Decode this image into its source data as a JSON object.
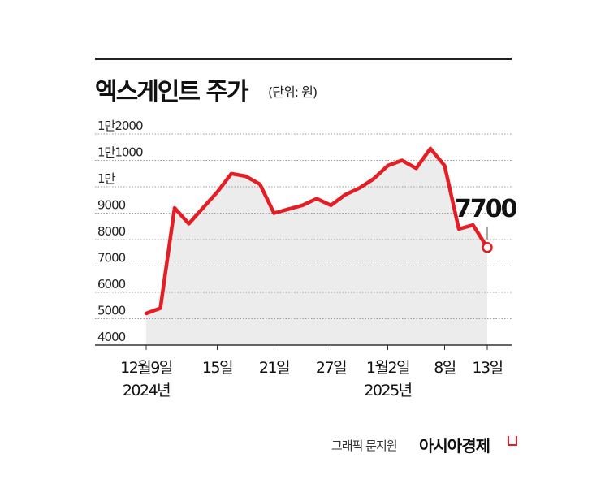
{
  "title": "엑스게인트 주가",
  "unit": "(단위: 원)",
  "credit": "그래픽 문지원",
  "brand": "아시아경제",
  "colors": {
    "line": "#e41e25",
    "fill": "#ececec",
    "grid": "#9a9a9a"
  },
  "chart_data": {
    "type": "line",
    "title": "엑스게인트 주가",
    "ylabel": "(단위: 원)",
    "ylim": [
      4000,
      12000
    ],
    "yticks": [
      4000,
      5000,
      6000,
      7000,
      8000,
      9000,
      10000,
      11000,
      12000
    ],
    "ytick_labels": [
      "4000",
      "5000",
      "6000",
      "7000",
      "8000",
      "9000",
      "1만",
      "1만1000",
      "1만2000"
    ],
    "xticks": [
      {
        "label": "12월9일",
        "sub": "2024년",
        "index": 0
      },
      {
        "label": "15일",
        "sub": "",
        "index": 5
      },
      {
        "label": "21일",
        "sub": "",
        "index": 9
      },
      {
        "label": "27일",
        "sub": "",
        "index": 13
      },
      {
        "label": "1월2일",
        "sub": "2025년",
        "index": 17
      },
      {
        "label": "8일",
        "sub": "",
        "index": 21
      },
      {
        "label": "13일",
        "sub": "",
        "index": 24
      }
    ],
    "x_count": 25,
    "values": [
      5200,
      5400,
      9200,
      8600,
      9200,
      9800,
      10500,
      10400,
      10100,
      9000,
      9150,
      9300,
      9550,
      9300,
      9700,
      9950,
      10300,
      10800,
      11000,
      10700,
      11450,
      10800,
      8400,
      8550,
      7700
    ],
    "last_value_label": "7700"
  }
}
